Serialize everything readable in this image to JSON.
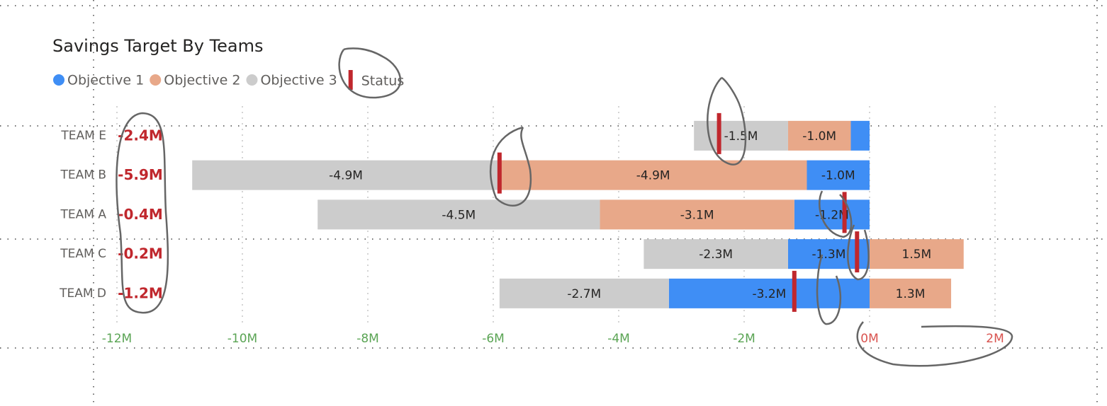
{
  "chart_data": {
    "type": "stacked-bar-horizontal",
    "title": "Savings Target By Teams",
    "categories": [
      "TEAM E",
      "TEAM B",
      "TEAM A",
      "TEAM C",
      "TEAM D"
    ],
    "series": [
      {
        "name": "Objective 1",
        "color": "#3f8ef5",
        "values": [
          -0.3,
          -1.0,
          -1.2,
          -1.3,
          -3.2
        ],
        "value_labels": [
          null,
          "-1.0M",
          "-1.2M",
          "-1.3M",
          "-3.2M"
        ]
      },
      {
        "name": "Objective 2",
        "color": "#e8a889",
        "values": [
          -1.0,
          -4.9,
          -3.1,
          1.5,
          1.3
        ],
        "value_labels": [
          "-1.0M",
          "-4.9M",
          "-3.1M",
          "1.5M",
          "1.3M"
        ]
      },
      {
        "name": "Objective 3",
        "color": "#cccccc",
        "values": [
          -1.5,
          -4.9,
          -4.5,
          -2.3,
          -2.7
        ],
        "value_labels": [
          "-1.5M",
          "-4.9M",
          "-4.5M",
          "-2.3M",
          "-2.7M"
        ]
      }
    ],
    "status": {
      "name": "Status",
      "color": "#c0272d",
      "values": [
        -2.4,
        -5.9,
        -0.4,
        -0.2,
        -1.2
      ],
      "value_labels": [
        "-2.4M",
        "-5.9M",
        "-0.4M",
        "-0.2M",
        "-1.2M"
      ]
    },
    "xlim": [
      -12,
      2
    ],
    "xticks": [
      {
        "value": -12,
        "label": "-12M"
      },
      {
        "value": -10,
        "label": "-10M"
      },
      {
        "value": -8,
        "label": "-8M"
      },
      {
        "value": -6,
        "label": "-6M"
      },
      {
        "value": -4,
        "label": "-4M"
      },
      {
        "value": -2,
        "label": "-2M"
      },
      {
        "value": 0,
        "label": "0M"
      },
      {
        "value": 2,
        "label": "2M"
      }
    ],
    "xtick_colors": {
      "negative": "#5aa454",
      "nonnegative": "#d9534f"
    },
    "grid": true,
    "legend": "top-left"
  }
}
